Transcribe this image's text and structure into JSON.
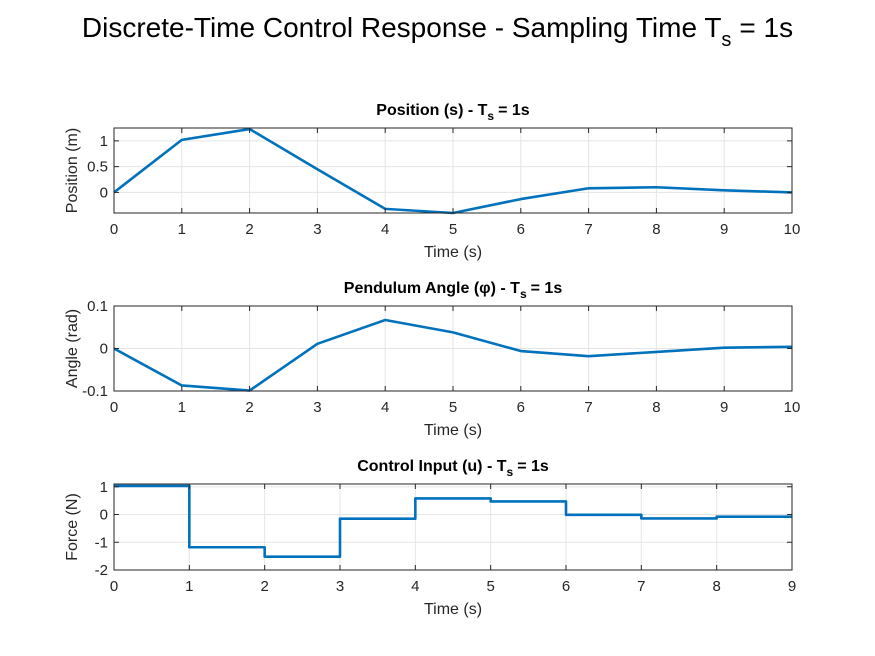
{
  "figure": {
    "title_main": "Discrete-Time Control Response - Sampling Time T",
    "title_sub": "s",
    "title_tail": "= 1s"
  },
  "colors": {
    "line": "#0072BD",
    "grid": "#e5e5e5",
    "axis": "#262626",
    "background": "#ffffff"
  },
  "chart_data": [
    {
      "type": "line",
      "title": "Position (s) - T_s = 1s",
      "title_main": "Position (s) - T",
      "title_sub": "s",
      "title_tail": "= 1s",
      "xlabel": "Time (s)",
      "ylabel": "Position (m)",
      "xlim": [
        0,
        10
      ],
      "ylim": [
        -0.4,
        1.25
      ],
      "xticks": [
        0,
        1,
        2,
        3,
        4,
        5,
        6,
        7,
        8,
        9,
        10
      ],
      "yticks": [
        0,
        0.5,
        1
      ],
      "ytick_labels": [
        "0",
        "0.5",
        "1"
      ],
      "grid": true,
      "step": false,
      "x": [
        0,
        1,
        2,
        3,
        4,
        5,
        6,
        7,
        8,
        9,
        10
      ],
      "y": [
        0.0,
        1.02,
        1.23,
        0.45,
        -0.32,
        -0.4,
        -0.13,
        0.08,
        0.1,
        0.04,
        0.0
      ]
    },
    {
      "type": "line",
      "title": "Pendulum Angle (φ) - T_s = 1s",
      "title_main": "Pendulum Angle (φ) - T",
      "title_sub": "s",
      "title_tail": "= 1s",
      "xlabel": "Time (s)",
      "ylabel": "Angle (rad)",
      "xlim": [
        0,
        10
      ],
      "ylim": [
        -0.1,
        0.1
      ],
      "xticks": [
        0,
        1,
        2,
        3,
        4,
        5,
        6,
        7,
        8,
        9,
        10
      ],
      "yticks": [
        -0.1,
        0,
        0.1
      ],
      "ytick_labels": [
        "-0.1",
        "0",
        "0.1"
      ],
      "grid": true,
      "step": false,
      "x": [
        0,
        1,
        2,
        3,
        4,
        5,
        6,
        7,
        8,
        9,
        10
      ],
      "y": [
        0.0,
        -0.087,
        -0.099,
        0.011,
        0.067,
        0.038,
        -0.006,
        -0.018,
        -0.008,
        0.002,
        0.004
      ]
    },
    {
      "type": "line",
      "title": "Control Input (u) - T_s = 1s",
      "title_main": "Control Input (u) - T",
      "title_sub": "s",
      "title_tail": "= 1s",
      "xlabel": "Time (s)",
      "ylabel": "Force (N)",
      "xlim": [
        0,
        9
      ],
      "ylim": [
        -2,
        1.1
      ],
      "xticks": [
        0,
        1,
        2,
        3,
        4,
        5,
        6,
        7,
        8,
        9
      ],
      "yticks": [
        -2,
        -1,
        0,
        1
      ],
      "ytick_labels": [
        "-2",
        "-1",
        "0",
        "1"
      ],
      "grid": true,
      "step": true,
      "x": [
        0,
        1,
        2,
        3,
        4,
        5,
        6,
        7,
        8
      ],
      "y": [
        1.03,
        -1.18,
        -1.52,
        -0.15,
        0.58,
        0.47,
        -0.01,
        -0.14,
        -0.08
      ]
    }
  ]
}
